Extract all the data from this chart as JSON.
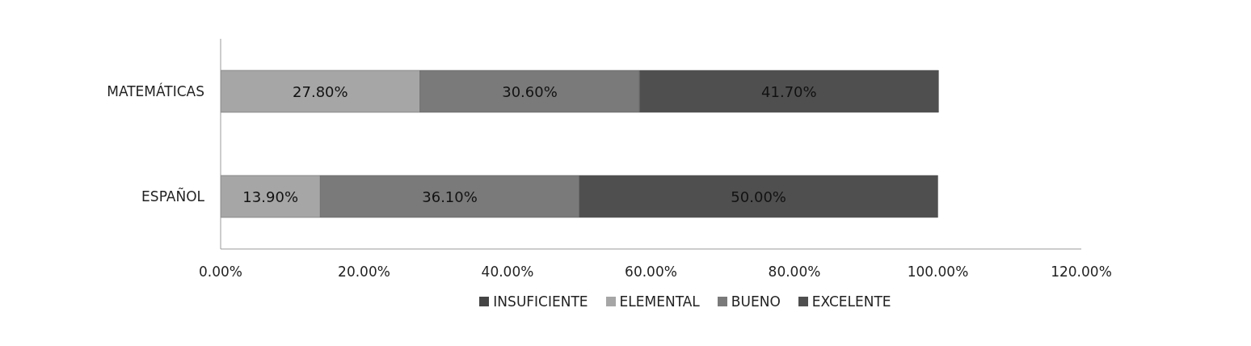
{
  "chart_data": {
    "type": "bar",
    "orientation": "horizontal",
    "stacked": true,
    "categories": [
      "MATEMÁTICAS",
      "ESPAÑOL"
    ],
    "series": [
      {
        "name": "INSUFICIENTE",
        "color": "#454545",
        "values": [
          null,
          null
        ]
      },
      {
        "name": "ELEMENTAL",
        "color": "#a6a6a6",
        "values": [
          27.8,
          13.9
        ],
        "value_labels": [
          "27.80%",
          "13.90%"
        ]
      },
      {
        "name": "BUENO",
        "color": "#7a7a7a",
        "values": [
          30.6,
          36.1
        ],
        "value_labels": [
          "30.60%",
          "36.10%"
        ]
      },
      {
        "name": "EXCELENTE",
        "color": "#4f4f4f",
        "values": [
          41.7,
          50.0
        ],
        "value_labels": [
          "41.70%",
          "50.00%"
        ]
      }
    ],
    "xlim": [
      0,
      120
    ],
    "xticks": [
      {
        "value": 0,
        "label": "0.00%"
      },
      {
        "value": 20,
        "label": "20.00%"
      },
      {
        "value": 40,
        "label": "40.00%"
      },
      {
        "value": 60,
        "label": "60.00%"
      },
      {
        "value": 80,
        "label": "80.00%"
      },
      {
        "value": 100,
        "label": "100.00%"
      },
      {
        "value": 120,
        "label": "120.00%"
      }
    ],
    "grid": false,
    "legend": "bottom"
  }
}
